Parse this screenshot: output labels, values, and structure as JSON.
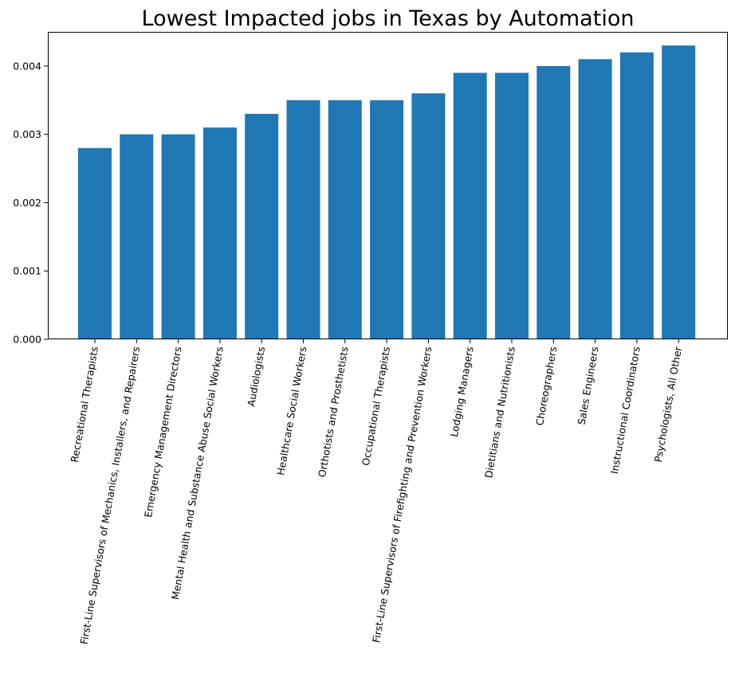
{
  "chart_data": {
    "type": "bar",
    "title": "Lowest Impacted jobs in Texas by Automation",
    "xlabel": "",
    "ylabel": "",
    "categories": [
      "Recreational Therapists",
      "First-Line Supervisors of Mechanics, Installers, and Repairers",
      "Emergency Management Directors",
      "Mental Health and Substance Abuse Social Workers",
      "Audiologists",
      "Healthcare Social Workers",
      "Orthotists and Prosthetists",
      "Occupational Therapists",
      "First-Line Supervisors of Firefighting and Prevention Workers",
      "Lodging Managers",
      "Dietitians and Nutritionists",
      "Choreographers",
      "Sales Engineers",
      "Instructional Coordinators",
      "Psychologists, All Other"
    ],
    "values": [
      0.0028,
      0.003,
      0.003,
      0.0031,
      0.0033,
      0.0035,
      0.0035,
      0.0035,
      0.0036,
      0.0039,
      0.0039,
      0.004,
      0.0041,
      0.0042,
      0.0043
    ],
    "ylim": [
      0,
      0.0045
    ],
    "yticks": [
      "0.000",
      "0.001",
      "0.002",
      "0.003",
      "0.004"
    ],
    "ytick_values": [
      0,
      0.001,
      0.002,
      0.003,
      0.004
    ],
    "bar_color": "#1f77b4",
    "grid": false,
    "legend": "none"
  }
}
